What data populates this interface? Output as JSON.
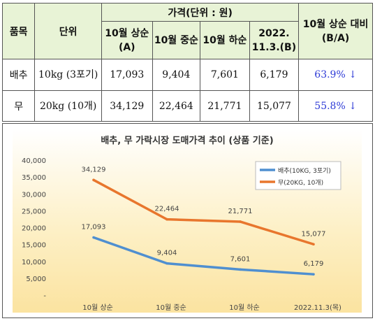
{
  "table": {
    "header": {
      "item": "품목",
      "unit": "단위",
      "price_group": "가격(단위 : 원)",
      "ratio": "10월 상순 대비 (B/A)",
      "cols": [
        "10월 상순(A)",
        "10월 중순",
        "10월 하순",
        "2022. 11.3.(B)"
      ]
    },
    "rows": [
      {
        "item": "배추",
        "unit": "10kg (3포기)",
        "values": [
          "17,093",
          "9,404",
          "7,601",
          "6,179"
        ],
        "ratio": "63.9% ↓"
      },
      {
        "item": "무",
        "unit": "20kg (10개)",
        "values": [
          "34,129",
          "22,464",
          "21,771",
          "15,077"
        ],
        "ratio": "55.8% ↓"
      }
    ]
  },
  "chart_data": {
    "type": "line",
    "title": "배추, 무 가락시장 도매가격 추이 (상품 기준)",
    "categories": [
      "10월 상순",
      "10월 중순",
      "10월 하순",
      "2022.11.3(목)"
    ],
    "ylim": [
      0,
      40000
    ],
    "yticks": [
      "-",
      "5,000",
      "10,000",
      "15,000",
      "20,000",
      "25,000",
      "30,000",
      "35,000",
      "40,000"
    ],
    "grid": false,
    "legend": "top-right",
    "series": [
      {
        "name": "배추(10KG, 3포기)",
        "color": "#4f8fd0",
        "values": [
          17093,
          9404,
          7601,
          6179
        ],
        "labels": [
          "17,093",
          "9,404",
          "7,601",
          "6,179"
        ]
      },
      {
        "name": "무(20KG, 10개)",
        "color": "#e8762d",
        "values": [
          34129,
          22464,
          21771,
          15077
        ],
        "labels": [
          "34,129",
          "22,464",
          "21,771",
          "15,077"
        ]
      }
    ]
  }
}
